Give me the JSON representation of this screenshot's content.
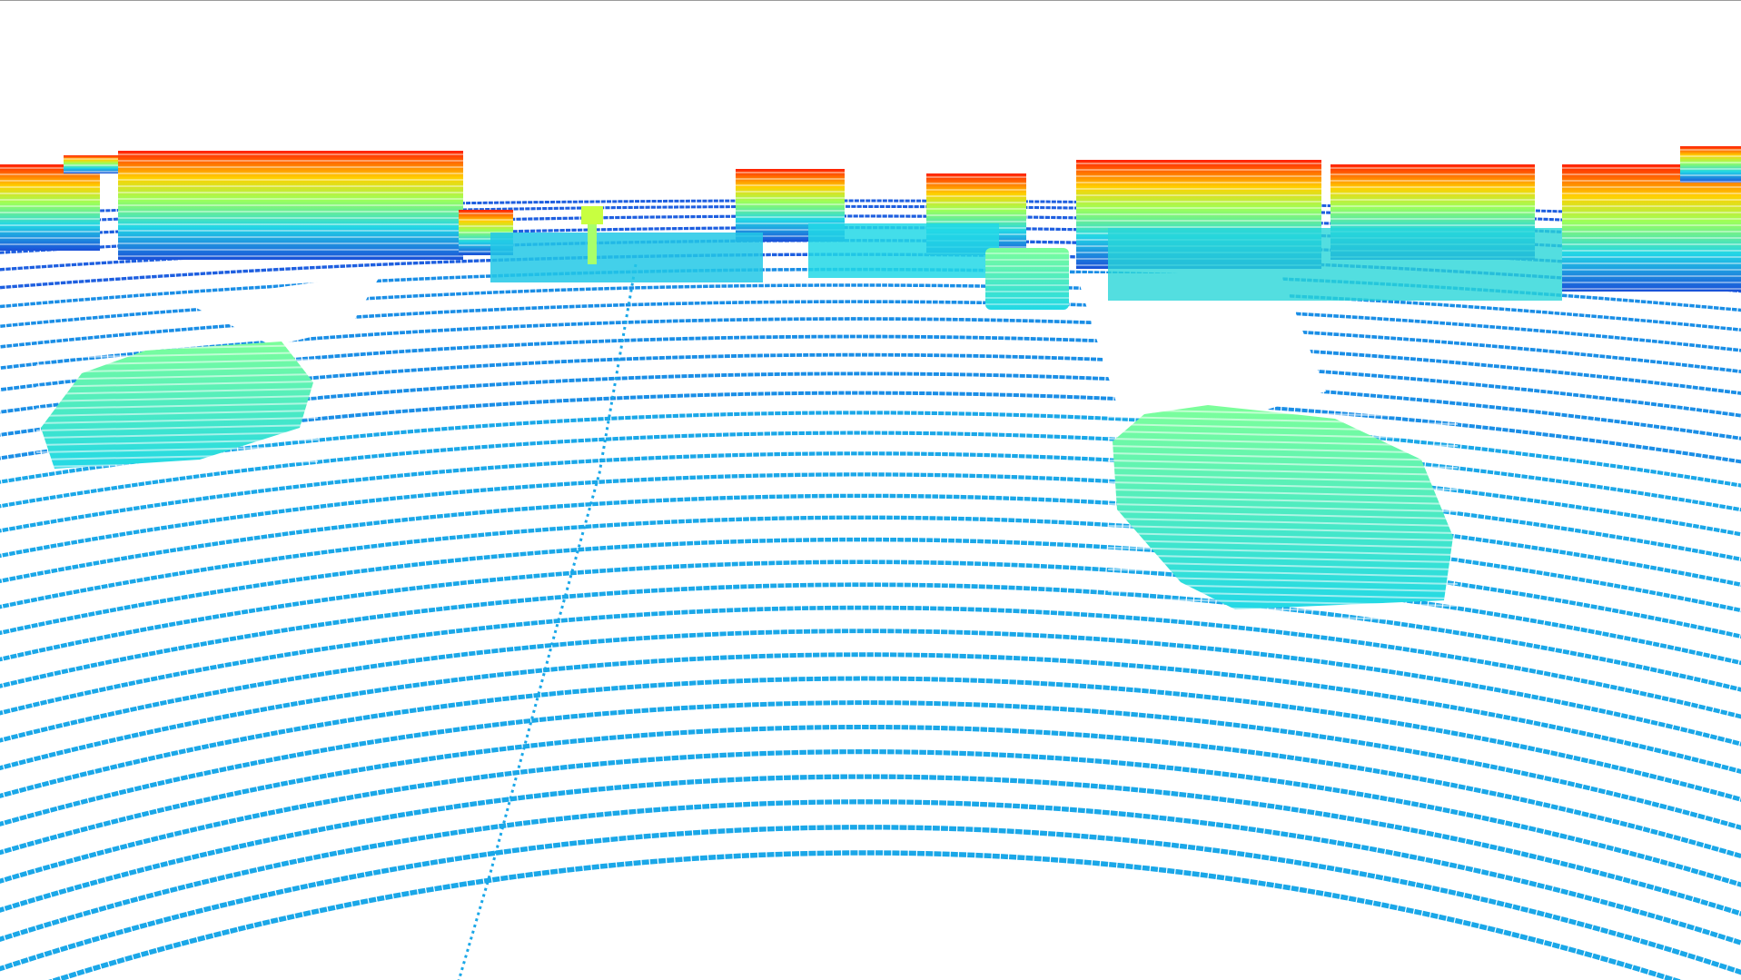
{
  "scene": {
    "background": "#ffffff",
    "border_color": "#9a9a9a",
    "colormap": "jet",
    "colormap_stops": [
      "#0000cc",
      "#0a4ee0",
      "#1aa7e8",
      "#22e6e6",
      "#7dff7d",
      "#e6ff1a",
      "#ffa500",
      "#ff2a00"
    ],
    "color_encodes": "height",
    "objects": [
      "ground-scan-rings",
      "parked-car-left",
      "parked-car-right",
      "distant-vehicle",
      "building-facades",
      "pole"
    ]
  }
}
